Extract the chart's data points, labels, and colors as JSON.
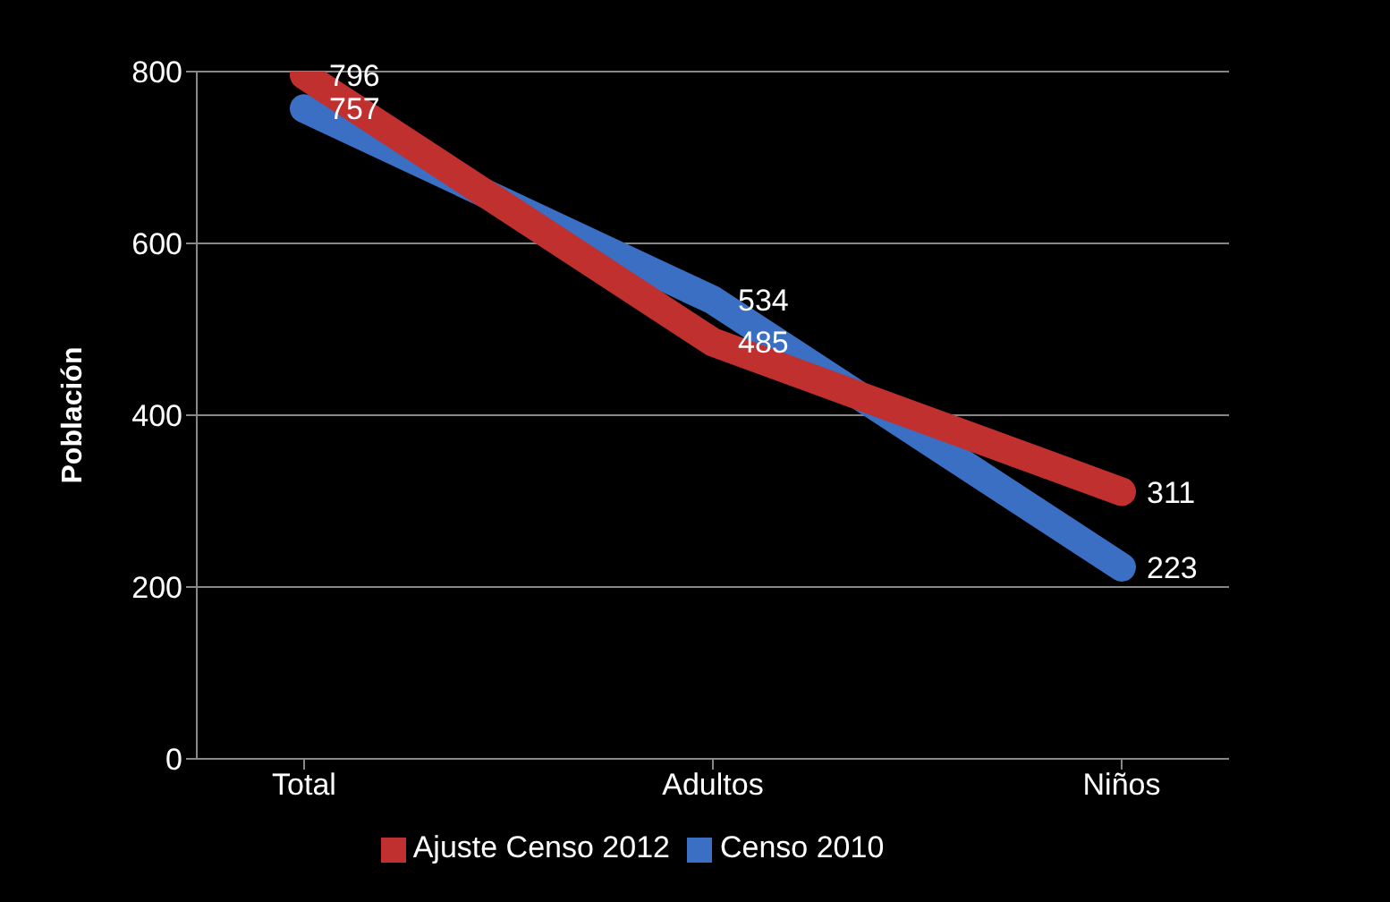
{
  "chart_data": {
    "type": "line",
    "ylabel": "Población",
    "categories": [
      "Total",
      "Adultos",
      "Niños"
    ],
    "series": [
      {
        "name": "Censo 2010",
        "color": "#3a6fc4",
        "values": [
          757,
          534,
          223
        ]
      },
      {
        "name": "Ajuste Censo 2012",
        "color": "#c0302f",
        "values": [
          796,
          485,
          311
        ]
      }
    ],
    "ylim": [
      0,
      800
    ],
    "yticks": [
      0,
      200,
      400,
      600,
      800
    ],
    "grid": "y",
    "legend": "bottom",
    "data_labels": true,
    "marker": "none",
    "line_style": "solid"
  }
}
